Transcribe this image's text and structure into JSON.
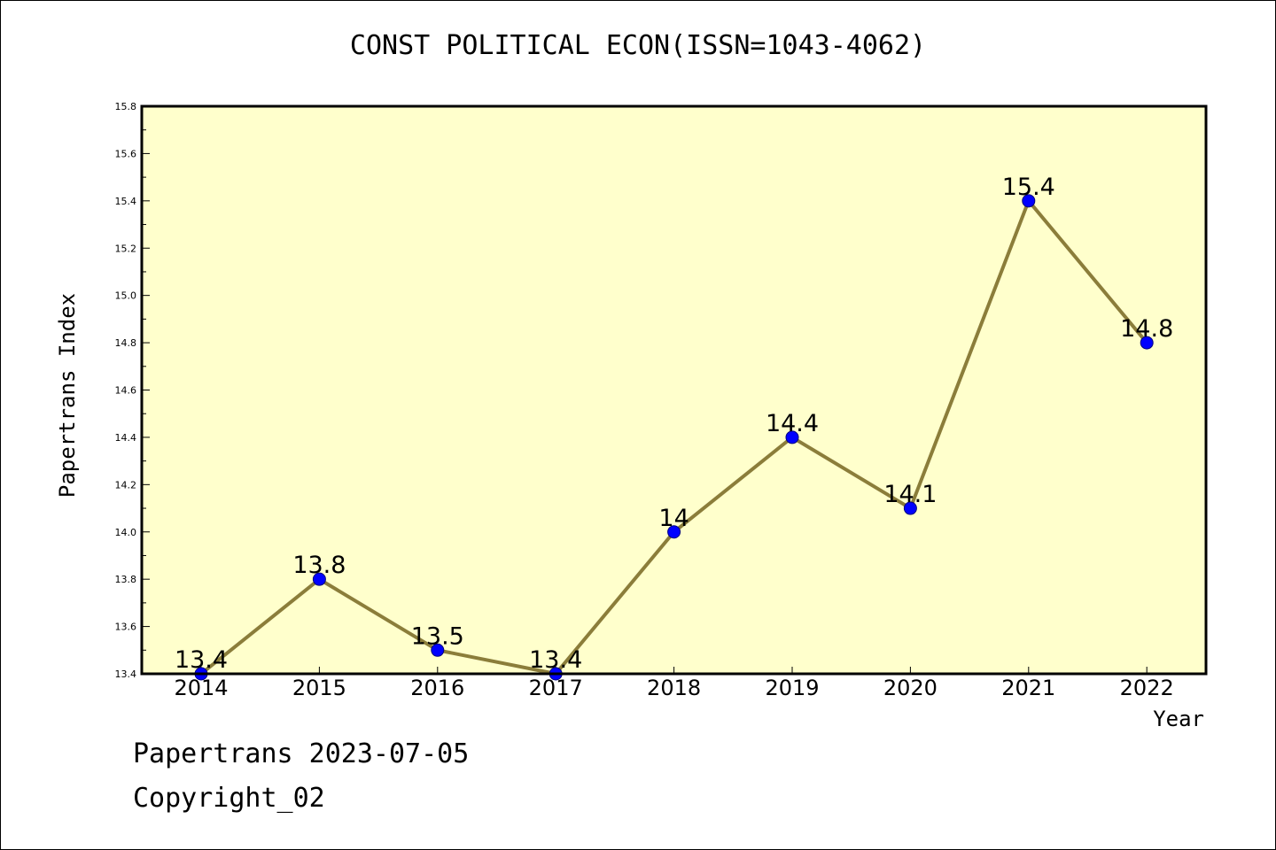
{
  "chart_data": {
    "type": "line",
    "title": "CONST POLITICAL ECON(ISSN=1043-4062)",
    "xlabel": "Year",
    "ylabel": "Papertrans Index",
    "categories": [
      "2014",
      "2015",
      "2016",
      "2017",
      "2018",
      "2019",
      "2020",
      "2021",
      "2022"
    ],
    "series": [
      {
        "values": [
          13.4,
          13.8,
          13.5,
          13.4,
          14.0,
          14.4,
          14.1,
          15.4,
          14.8
        ],
        "labels": [
          "13.4",
          "13.8",
          "13.5",
          "13.4",
          "14",
          "14.4",
          "14.1",
          "15.4",
          "14.8"
        ]
      }
    ],
    "ylim": [
      13.4,
      15.8
    ],
    "yticks": [
      "13.4",
      "13.6",
      "13.8",
      "14.0",
      "14.2",
      "14.4",
      "14.6",
      "14.8",
      "15.0",
      "15.2",
      "15.4",
      "15.6",
      "15.8"
    ],
    "grid": false,
    "colors": {
      "plot_background": "#ffffcc",
      "line": "#8b7d3a",
      "marker": "#0000ff"
    }
  },
  "footer": {
    "date_line": "Papertrans 2023-07-05",
    "copyright_line": "Copyright_02"
  }
}
